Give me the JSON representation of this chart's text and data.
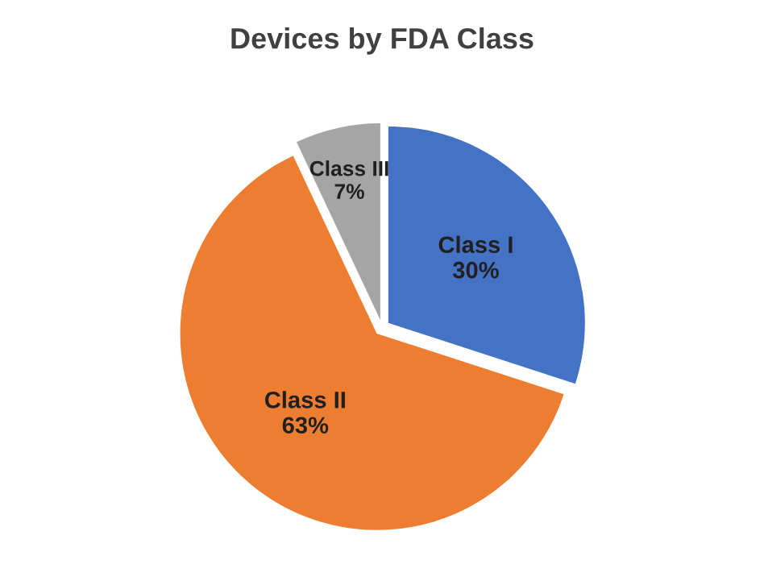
{
  "chart_data": {
    "type": "pie",
    "title": "Devices by FDA Class",
    "categories": [
      "Class I",
      "Class II",
      "Class III"
    ],
    "values": [
      30,
      63,
      7
    ],
    "value_labels": [
      "30%",
      "63%",
      "7%"
    ],
    "colors": [
      "#4472c4",
      "#ed7d31",
      "#a5a5a5"
    ]
  }
}
